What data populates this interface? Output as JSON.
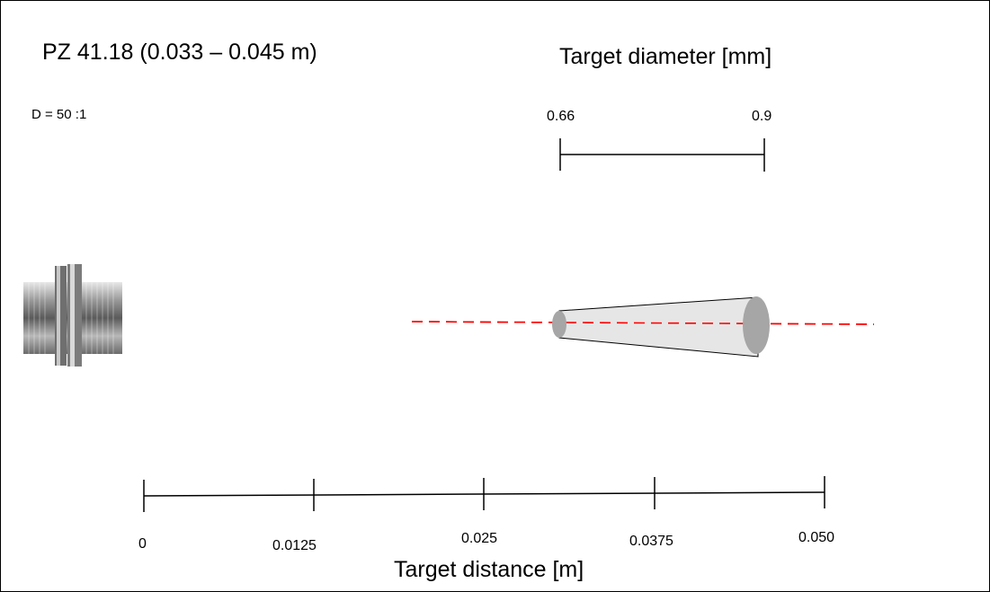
{
  "title": "PZ 41.18 (0.033 – 0.045 m)",
  "ratio_label": "D = 50 :1",
  "diameter_axis": {
    "title": "Target diameter [mm]",
    "tick_labels": [
      "0.66",
      "0.9"
    ],
    "values": [
      0.66,
      0.9
    ]
  },
  "distance_axis": {
    "title": "Target distance [m]",
    "tick_labels": [
      "0",
      "0.0125",
      "0.025",
      "0.0375",
      "0.050"
    ],
    "values": [
      0,
      0.0125,
      0.025,
      0.0375,
      0.05
    ]
  },
  "spot": {
    "near_distance": 0.033,
    "far_distance": 0.045
  },
  "colors": {
    "axis_line": "#ff0000",
    "cone_fill": "#e6e6e6",
    "ellipse_fill": "#a6a6a6"
  },
  "icons": {
    "sensor": "pyrometer-sensor-icon"
  }
}
